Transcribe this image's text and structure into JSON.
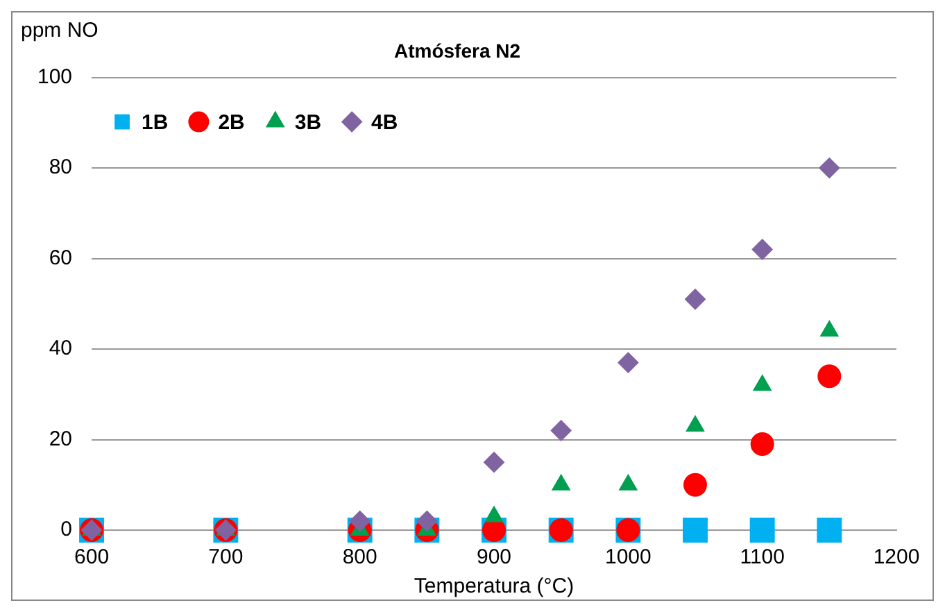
{
  "chart_data": {
    "type": "scatter",
    "title": "Atmósfera N2",
    "xlabel": "Temperatura (°C)",
    "ylabel": "ppm NO",
    "x": [
      600,
      700,
      800,
      850,
      900,
      950,
      1000,
      1050,
      1100,
      1150
    ],
    "series": [
      {
        "name": "1B",
        "color": "#00b0f0",
        "marker": "square",
        "values": [
          0,
          0,
          0,
          0,
          0,
          0,
          0,
          0,
          0,
          0
        ]
      },
      {
        "name": "2B",
        "color": "#ff0000",
        "marker": "circle",
        "values": [
          0,
          0,
          0,
          0,
          0,
          0,
          0,
          10,
          19,
          34
        ]
      },
      {
        "name": "3B",
        "color": "#00a050",
        "marker": "triangle",
        "values": [
          0,
          0,
          0,
          0,
          3,
          10,
          10,
          23,
          32,
          44
        ]
      },
      {
        "name": "4B",
        "color": "#8064a2",
        "marker": "diamond",
        "values": [
          0,
          0,
          2,
          2,
          15,
          22,
          37,
          51,
          62,
          80
        ]
      }
    ],
    "xlim": [
      600,
      1200
    ],
    "xticks": [
      600,
      700,
      800,
      900,
      1000,
      1100,
      1200
    ],
    "ylim": [
      0,
      100
    ],
    "yticks": [
      0,
      20,
      40,
      60,
      80,
      100
    ],
    "grid": "y",
    "legend": "top left"
  }
}
